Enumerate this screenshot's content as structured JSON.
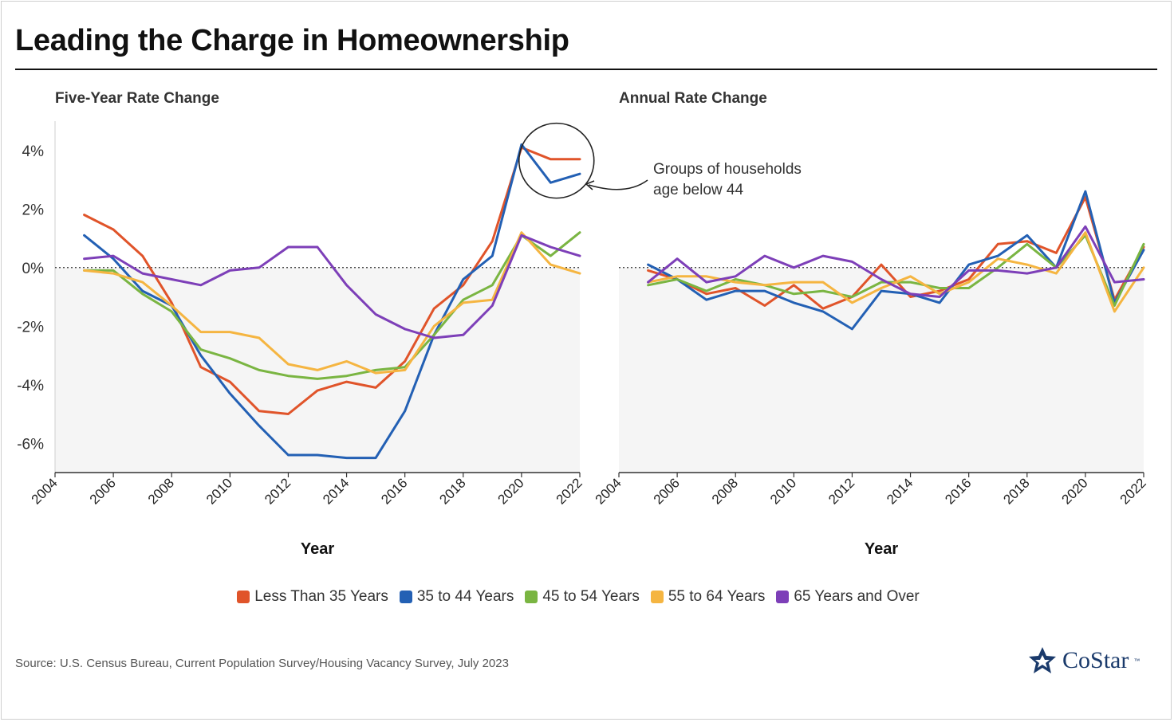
{
  "title": "Leading the Charge in Homeownership",
  "source": "Source: U.S. Census Bureau, Current Population Survey/Housing Vacancy Survey, July 2023",
  "logo": {
    "text": "CoStar",
    "tm": "™"
  },
  "annotation": {
    "line1": "Groups of households",
    "line2": "age below 44"
  },
  "colors": {
    "Less Than 35 Years": "#e0542a",
    "35 to 44 Years": "#2360b4",
    "45 to 54 Years": "#7ab542",
    "55 to 64 Years": "#f5b541",
    "65 Years and Over": "#7d3fb8"
  },
  "legend": [
    "Less Than 35 Years",
    "35 to 44 Years",
    "45 to 54 Years",
    "55 to 64 Years",
    "65 Years and Over"
  ],
  "chart_data": [
    {
      "type": "line",
      "title": "Five-Year Rate Change",
      "xlabel": "Year",
      "ylabel": "",
      "xlim": [
        2004,
        2022
      ],
      "ylim": [
        -7,
        5
      ],
      "xticks": [
        2004,
        2006,
        2008,
        2010,
        2012,
        2014,
        2016,
        2018,
        2020,
        2022
      ],
      "yticks": [
        4,
        2,
        0,
        -2,
        -4,
        -6
      ],
      "ytick_labels": [
        "4%",
        "2%",
        "0%",
        "-2%",
        "-4%",
        "-6%"
      ],
      "x": [
        2005,
        2006,
        2007,
        2008,
        2009,
        2010,
        2011,
        2012,
        2013,
        2014,
        2015,
        2016,
        2017,
        2018,
        2019,
        2020,
        2021,
        2022
      ],
      "series": [
        {
          "name": "Less Than 35 Years",
          "values": [
            1.8,
            1.3,
            0.4,
            -1.2,
            -3.4,
            -3.9,
            -4.9,
            -5.0,
            -4.2,
            -3.9,
            -4.1,
            -3.2,
            -1.4,
            -0.6,
            0.9,
            4.1,
            3.7,
            3.7
          ]
        },
        {
          "name": "35 to 44 Years",
          "values": [
            1.1,
            0.3,
            -0.8,
            -1.3,
            -3.0,
            -4.3,
            -5.4,
            -6.4,
            -6.4,
            -6.5,
            -6.5,
            -4.9,
            -2.3,
            -0.4,
            0.4,
            4.2,
            2.9,
            3.2
          ]
        },
        {
          "name": "45 to 54 Years",
          "values": [
            -0.1,
            -0.1,
            -0.9,
            -1.5,
            -2.8,
            -3.1,
            -3.5,
            -3.7,
            -3.8,
            -3.7,
            -3.5,
            -3.4,
            -2.3,
            -1.1,
            -0.6,
            1.1,
            0.4,
            1.2
          ]
        },
        {
          "name": "55 to 64 Years",
          "values": [
            -0.1,
            -0.2,
            -0.5,
            -1.3,
            -2.2,
            -2.2,
            -2.4,
            -3.3,
            -3.5,
            -3.2,
            -3.6,
            -3.5,
            -2.0,
            -1.2,
            -1.1,
            1.2,
            0.1,
            -0.2
          ]
        },
        {
          "name": "65 Years and Over",
          "values": [
            0.3,
            0.4,
            -0.2,
            -0.4,
            -0.6,
            -0.1,
            0.0,
            0.7,
            0.7,
            -0.6,
            -1.6,
            -2.1,
            -2.4,
            -2.3,
            -1.3,
            1.1,
            0.7,
            0.4
          ]
        }
      ]
    },
    {
      "type": "line",
      "title": "Annual Rate Change",
      "xlabel": "Year",
      "ylabel": "",
      "xlim": [
        2004,
        2022
      ],
      "ylim": [
        -7,
        5
      ],
      "xticks": [
        2004,
        2006,
        2008,
        2010,
        2012,
        2014,
        2016,
        2018,
        2020,
        2022
      ],
      "x": [
        2005,
        2006,
        2007,
        2008,
        2009,
        2010,
        2011,
        2012,
        2013,
        2014,
        2015,
        2016,
        2017,
        2018,
        2019,
        2020,
        2021,
        2022
      ],
      "series": [
        {
          "name": "Less Than 35 Years",
          "values": [
            -0.1,
            -0.4,
            -0.9,
            -0.7,
            -1.3,
            -0.6,
            -1.4,
            -1.0,
            0.1,
            -1.0,
            -0.8,
            -0.4,
            0.8,
            0.9,
            0.5,
            2.4,
            -1.1,
            0.7
          ]
        },
        {
          "name": "35 to 44 Years",
          "values": [
            0.1,
            -0.4,
            -1.1,
            -0.8,
            -0.8,
            -1.2,
            -1.5,
            -2.1,
            -0.8,
            -0.9,
            -1.2,
            0.1,
            0.4,
            1.1,
            0.0,
            2.6,
            -1.2,
            0.6
          ]
        },
        {
          "name": "45 to 54 Years",
          "values": [
            -0.6,
            -0.4,
            -0.8,
            -0.4,
            -0.6,
            -0.9,
            -0.8,
            -1.0,
            -0.5,
            -0.5,
            -0.7,
            -0.7,
            0.0,
            0.8,
            0.0,
            1.1,
            -1.3,
            0.8
          ]
        },
        {
          "name": "55 to 64 Years",
          "values": [
            -0.5,
            -0.3,
            -0.3,
            -0.5,
            -0.6,
            -0.5,
            -0.5,
            -1.2,
            -0.7,
            -0.3,
            -0.9,
            -0.5,
            0.3,
            0.1,
            -0.2,
            1.2,
            -1.5,
            0.0
          ]
        },
        {
          "name": "65 Years and Over",
          "values": [
            -0.5,
            0.3,
            -0.5,
            -0.3,
            0.4,
            0.0,
            0.4,
            0.2,
            -0.4,
            -0.9,
            -1.0,
            -0.1,
            -0.1,
            -0.2,
            0.0,
            1.4,
            -0.5,
            -0.4
          ]
        }
      ]
    }
  ]
}
